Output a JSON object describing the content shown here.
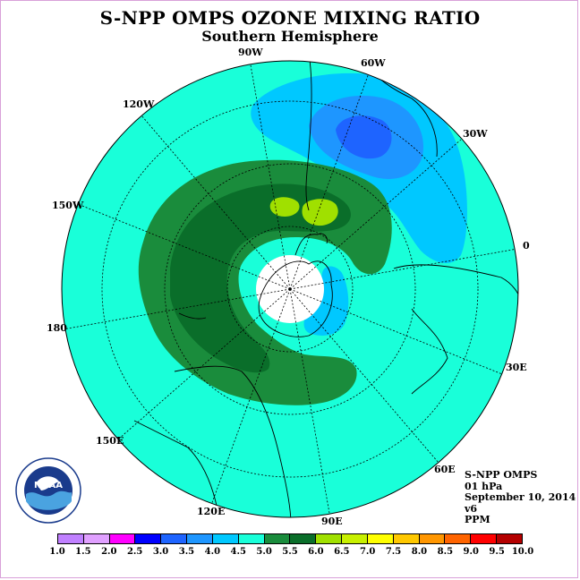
{
  "header": {
    "title": "S-NPP OMPS OZONE MIXING RATIO",
    "subtitle": "Southern Hemisphere"
  },
  "map": {
    "projection": "polar stereographic",
    "hemisphere": "south",
    "longitude_labels": [
      "90W",
      "60W",
      "30W",
      "0",
      "30E",
      "60E",
      "90E",
      "120E",
      "150E",
      "180",
      "150W",
      "120W"
    ],
    "colors": {
      "background": "#19ffd9",
      "level_5_0": "#1a8c3c",
      "level_5_5": "#0a6e2a",
      "level_6_0": "#a0e000",
      "level_4_0": "#00c8ff",
      "level_3_5": "#1e96ff",
      "land_outline": "#000000",
      "grid": "#000000",
      "pole_gap": "#ffffff"
    }
  },
  "info": {
    "instrument": "S-NPP OMPS",
    "pressure": "01 hPa",
    "date": "September 10, 2014",
    "version": "v6",
    "units": "PPM"
  },
  "logo": {
    "text": "NOAA",
    "ring_text": "NATIONAL OCEANIC AND ATMOSPHERIC ADMINISTRATION U.S. DEPARTMENT OF COMMERCE"
  },
  "colorbar": {
    "ticks": [
      "1.0",
      "1.5",
      "2.0",
      "2.5",
      "3.0",
      "3.5",
      "4.0",
      "4.5",
      "5.0",
      "5.5",
      "6.0",
      "6.5",
      "7.0",
      "7.5",
      "8.0",
      "8.5",
      "9.0",
      "9.5",
      "10.0"
    ],
    "colors": [
      "#c080ff",
      "#e0a0ff",
      "#ff00ff",
      "#0000ff",
      "#1e64ff",
      "#1e96ff",
      "#00c8ff",
      "#19ffd9",
      "#1a8c3c",
      "#0a6e2a",
      "#a0e000",
      "#c8f000",
      "#ffff00",
      "#ffc800",
      "#ff9600",
      "#ff6400",
      "#ff0000",
      "#b40000",
      "#8c5a3c"
    ]
  }
}
